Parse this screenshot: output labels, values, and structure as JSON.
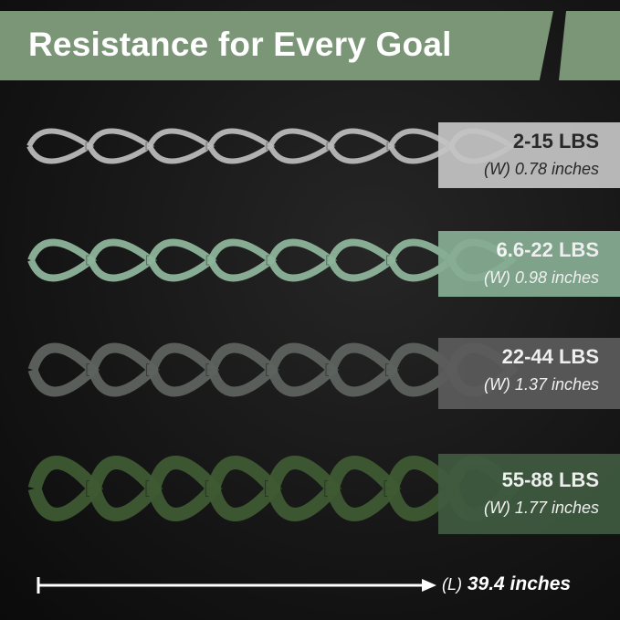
{
  "title": "Resistance for Every Goal",
  "colors": {
    "banner": "#7a9677",
    "background": "#151515"
  },
  "bands": [
    {
      "weight": "2-15 LBS",
      "width": "(W) 0.78 inches",
      "band_color": "#b9b9b9",
      "box_color": "#c4c4c4",
      "text_color": "#2a2a2a"
    },
    {
      "weight": "6.6-22 LBS",
      "width": "(W) 0.98 inches",
      "band_color": "#8db49a",
      "box_color": "#86ad93",
      "text_color": "#ffffff"
    },
    {
      "weight": "22-44 LBS",
      "width": "(W) 1.37 inches",
      "band_color": "#5d625e",
      "box_color": "#5b5b5b",
      "text_color": "#ffffff"
    },
    {
      "weight": "55-88 LBS",
      "width": "(W) 1.77 inches",
      "band_color": "#3f5a34",
      "box_color": "#3f5a40",
      "text_color": "#ffffff"
    }
  ],
  "length": {
    "prefix": "(L)",
    "value": "39.4 inches"
  }
}
